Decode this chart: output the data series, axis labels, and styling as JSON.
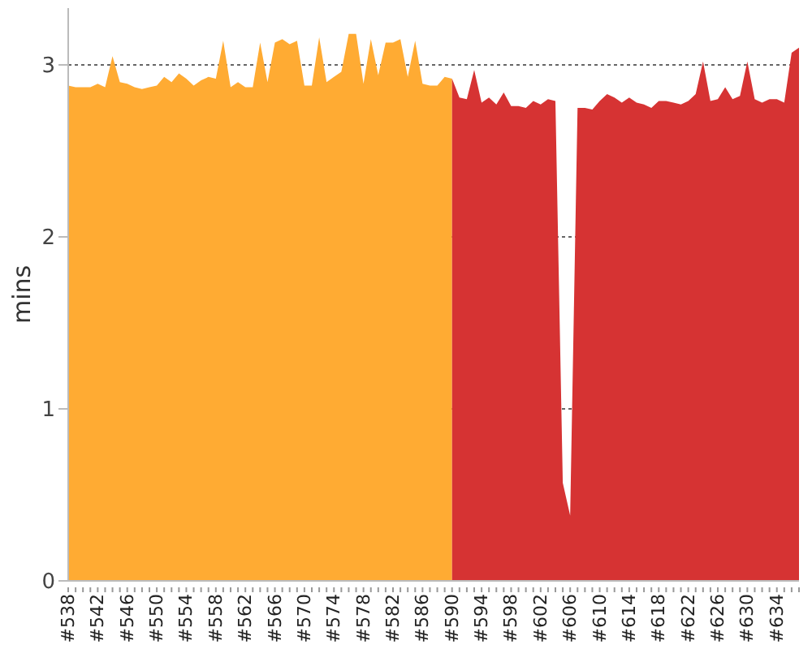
{
  "chart_data": {
    "type": "area",
    "ylabel": "mins",
    "categories": [
      "#538",
      null,
      null,
      null,
      "#542",
      null,
      null,
      null,
      "#546",
      null,
      null,
      null,
      "#550",
      null,
      null,
      null,
      "#554",
      null,
      null,
      null,
      "#558",
      null,
      null,
      null,
      "#562",
      null,
      null,
      null,
      "#566",
      null,
      null,
      null,
      "#570",
      null,
      null,
      null,
      "#574",
      null,
      null,
      null,
      "#578",
      null,
      null,
      null,
      "#582",
      null,
      null,
      null,
      "#586",
      null,
      null,
      null,
      "#590",
      null,
      null,
      null,
      "#594",
      null,
      null,
      null,
      "#598",
      null,
      null,
      null,
      "#602",
      null,
      null,
      null,
      "#606",
      null,
      null,
      null,
      "#610",
      null,
      null,
      null,
      "#614",
      null,
      null,
      null,
      "#618",
      null,
      null,
      null,
      "#622",
      null,
      null,
      null,
      "#626",
      null,
      null,
      null,
      "#630",
      null,
      null,
      null,
      "#634",
      null,
      null,
      null
    ],
    "series": [
      {
        "color": "#ffab33",
        "values": [
          2.88,
          2.87,
          2.87,
          2.87,
          2.89,
          2.87,
          3.05,
          2.9,
          2.89,
          2.87,
          2.86,
          2.87,
          2.88,
          2.93,
          2.9,
          2.95,
          2.92,
          2.88,
          2.91,
          2.93,
          2.92,
          3.14,
          2.87,
          2.9,
          2.87,
          2.87,
          3.13,
          2.9,
          3.13,
          3.15,
          3.12,
          3.14,
          2.88,
          2.88,
          3.16,
          2.9,
          2.93,
          2.96,
          3.18,
          3.18,
          2.89,
          3.15,
          2.94,
          3.13,
          3.13,
          3.15,
          2.93,
          3.14,
          2.89,
          2.88,
          2.88,
          2.93,
          2.92,
          null,
          null,
          null,
          null,
          null,
          null,
          null,
          null,
          null,
          null,
          null,
          null,
          null,
          null,
          null,
          null,
          null,
          null,
          null,
          null,
          null,
          null,
          null,
          null,
          null,
          null,
          null,
          null,
          null,
          null,
          null,
          null,
          null,
          null,
          null,
          null,
          null,
          null,
          null,
          null,
          null,
          null,
          null,
          null,
          null,
          null,
          null
        ]
      },
      {
        "color": "#d63333",
        "values": [
          null,
          null,
          null,
          null,
          null,
          null,
          null,
          null,
          null,
          null,
          null,
          null,
          null,
          null,
          null,
          null,
          null,
          null,
          null,
          null,
          null,
          null,
          null,
          null,
          null,
          null,
          null,
          null,
          null,
          null,
          null,
          null,
          null,
          null,
          null,
          null,
          null,
          null,
          null,
          null,
          null,
          null,
          null,
          null,
          null,
          null,
          null,
          null,
          null,
          null,
          null,
          null,
          2.92,
          2.81,
          2.8,
          2.97,
          2.78,
          2.81,
          2.77,
          2.84,
          2.76,
          2.76,
          2.75,
          2.79,
          2.77,
          2.8,
          2.79,
          0.57,
          0.38,
          2.75,
          2.75,
          2.74,
          2.79,
          2.83,
          2.81,
          2.78,
          2.81,
          2.78,
          2.77,
          2.75,
          2.79,
          2.79,
          2.78,
          2.77,
          2.79,
          2.83,
          3.02,
          2.79,
          2.8,
          2.87,
          2.8,
          2.82,
          3.02,
          2.8,
          2.78,
          2.8,
          2.8,
          2.78,
          3.07,
          3.1
        ]
      }
    ],
    "ylim": [
      0,
      3.33
    ],
    "yticks": [
      0,
      1,
      2,
      3
    ],
    "grid": "y",
    "legend": false
  }
}
